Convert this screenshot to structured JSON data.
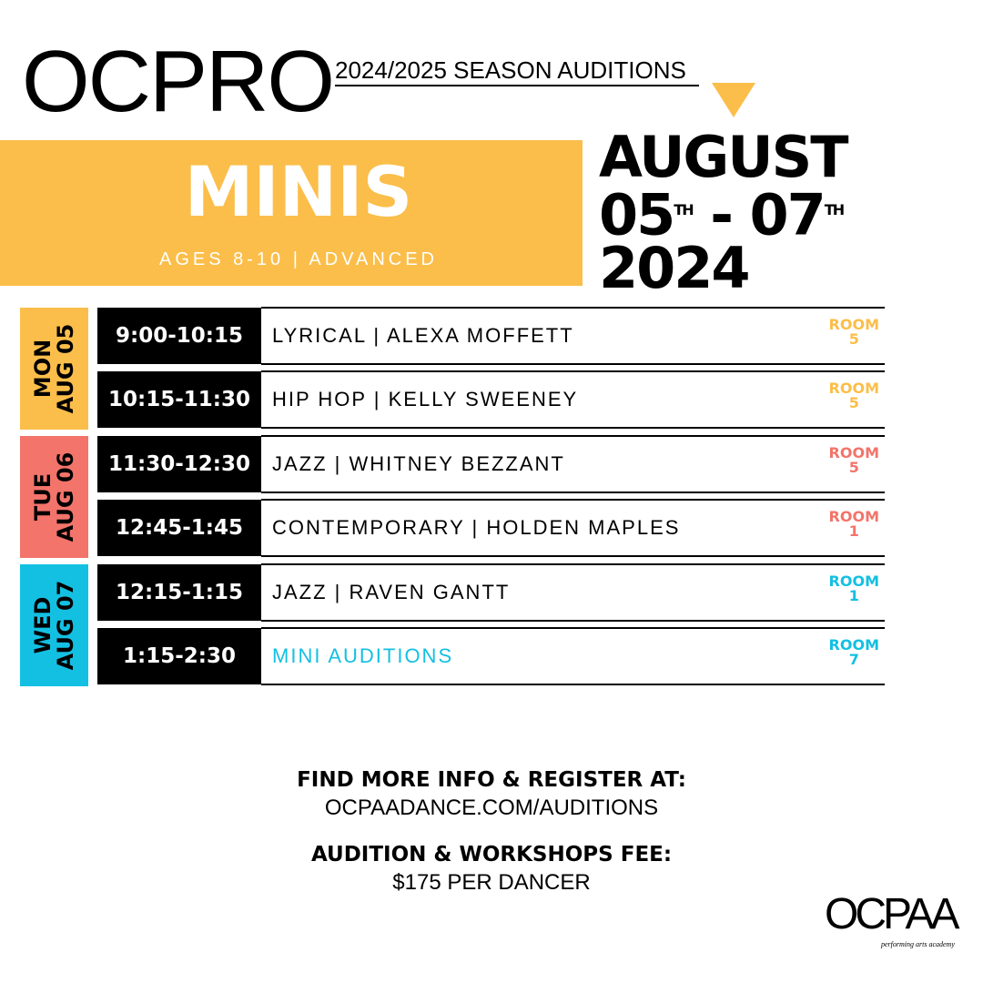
{
  "header": {
    "logo": "OCPRO",
    "season": "2024/2025 SEASON AUDITIONS"
  },
  "group": {
    "name": "MINIS",
    "subtitle": "AGES 8-10 | ADVANCED"
  },
  "dates": {
    "month": "AUGUST",
    "start": "05",
    "start_suffix": "TH",
    "dash": "-",
    "end": "07",
    "end_suffix": "TH",
    "year": "2024"
  },
  "days": [
    {
      "day": "MON",
      "date": "AUG 05",
      "color": "#fbbe4a",
      "sessions": [
        {
          "time": "9:00-10:15",
          "class": "LYRICAL | ALEXA MOFFETT",
          "room": "ROOM",
          "room_number": "5"
        },
        {
          "time": "10:15-11:30",
          "class": "HIP HOP | KELLY SWEENEY",
          "room": "ROOM",
          "room_number": "5"
        }
      ]
    },
    {
      "day": "TUE",
      "date": "AUG 06",
      "color": "#f2746a",
      "sessions": [
        {
          "time": "11:30-12:30",
          "class": "JAZZ | WHITNEY BEZZANT",
          "room": "ROOM",
          "room_number": "5"
        },
        {
          "time": "12:45-1:45",
          "class": "CONTEMPORARY | HOLDEN MAPLES",
          "room": "ROOM",
          "room_number": "1"
        }
      ]
    },
    {
      "day": "WED",
      "date": "AUG 07",
      "color": "#13c0e2",
      "sessions": [
        {
          "time": "12:15-1:15",
          "class": "JAZZ | RAVEN GANTT",
          "room": "ROOM",
          "room_number": "1"
        },
        {
          "time": "1:15-2:30",
          "class": "MINI AUDITIONS",
          "class_color": "#13c0e2",
          "room": "ROOM",
          "room_number": "7"
        }
      ]
    }
  ],
  "footer": {
    "info_heading": "FIND MORE INFO & REGISTER AT:",
    "url": "OCPAADANCE.COM/AUDITIONS",
    "fee_heading": "AUDITION & WORKSHOPS FEE:",
    "fee": "$175 PER DANCER"
  },
  "brand": {
    "logo": "OCPAA",
    "tagline": "performing arts academy"
  }
}
